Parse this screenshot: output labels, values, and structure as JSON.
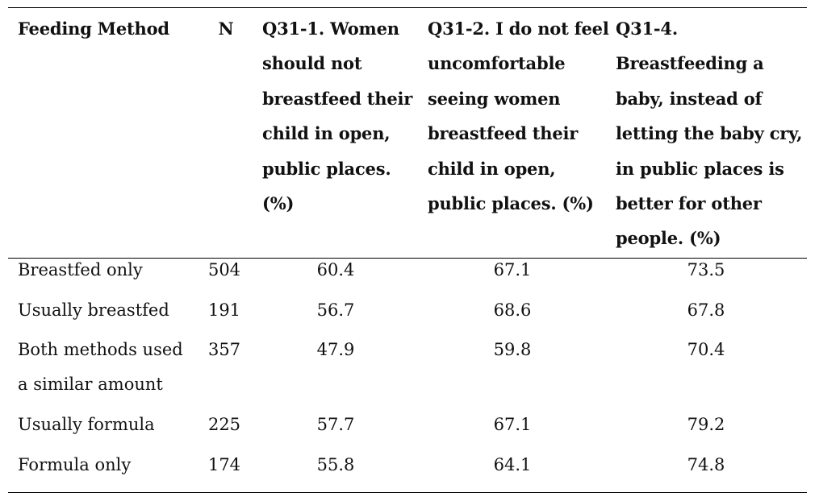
{
  "table": {
    "headers": [
      {
        "lines": [
          "Feeding Method"
        ]
      },
      {
        "lines": [
          "N"
        ]
      },
      {
        "lines": [
          "Q31-1. Women",
          "should not",
          "breastfeed their",
          "child in open,",
          "public places.",
          "(%)"
        ]
      },
      {
        "lines": [
          "Q31-2. I do not feel",
          "uncomfortable",
          "seeing women",
          "breastfeed their",
          "child in open,",
          "public places. (%)"
        ]
      },
      {
        "lines": [
          "Q31-4.",
          "Breastfeeding a",
          "baby, instead of",
          "letting the baby cry,",
          "in public places is",
          "better for other",
          "people. (%)"
        ]
      }
    ],
    "rows": [
      {
        "method": [
          "Breastfed only"
        ],
        "n": "504",
        "q31_1": "60.4",
        "q31_2": "67.1",
        "q31_4": "73.5"
      },
      {
        "method": [
          "Usually breastfed"
        ],
        "n": "191",
        "q31_1": "56.7",
        "q31_2": "68.6",
        "q31_4": "67.8"
      },
      {
        "method": [
          "Both methods used",
          "a similar amount"
        ],
        "n": "357",
        "q31_1": "47.9",
        "q31_2": "59.8",
        "q31_4": "70.4"
      },
      {
        "method": [
          "Usually formula"
        ],
        "n": "225",
        "q31_1": "57.7",
        "q31_2": "67.1",
        "q31_4": "79.2"
      },
      {
        "method": [
          "Formula only"
        ],
        "n": "174",
        "q31_1": "55.8",
        "q31_2": "64.1",
        "q31_4": "74.8"
      }
    ]
  }
}
